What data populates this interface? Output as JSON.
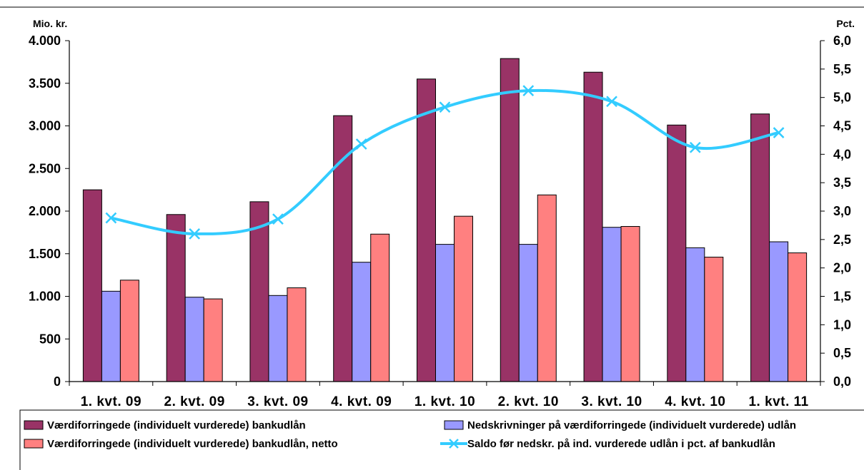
{
  "chart_data": {
    "type": "bar",
    "categories": [
      "1. kvt. 09",
      "2. kvt. 09",
      "3. kvt. 09",
      "4. kvt. 09",
      "1. kvt. 10",
      "2. kvt. 10",
      "3. kvt. 10",
      "4. kvt. 10",
      "1. kvt. 11"
    ],
    "left_axis": {
      "unit": "Mio. kr.",
      "ylim": [
        0,
        4000
      ],
      "ticks": [
        0,
        500,
        1000,
        1500,
        2000,
        2500,
        3000,
        3500,
        4000
      ],
      "tick_labels": [
        "0",
        "500",
        "1.000",
        "1.500",
        "2.000",
        "2.500",
        "3.000",
        "3.500",
        "4.000"
      ]
    },
    "right_axis": {
      "unit": "Pct.",
      "ylim": [
        0,
        6
      ],
      "ticks": [
        0,
        0.5,
        1,
        1.5,
        2,
        2.5,
        3,
        3.5,
        4,
        4.5,
        5,
        5.5,
        6
      ],
      "tick_labels": [
        "0,0",
        "0,5",
        "1,0",
        "1,5",
        "2,0",
        "2,5",
        "3,0",
        "3,5",
        "4,0",
        "4,5",
        "5,0",
        "5,5",
        "6,0"
      ]
    },
    "series": [
      {
        "name": "Værdiforringede (individuelt vurderede) bankudlån",
        "kind": "bar",
        "axis": "left",
        "color": "#993366",
        "values": [
          2250,
          1960,
          2110,
          3120,
          3550,
          3790,
          3630,
          3010,
          3140
        ]
      },
      {
        "name": "Nedskrivninger på værdiforringede (individuelt vurderede) udlån",
        "kind": "bar",
        "axis": "left",
        "color": "#9999ff",
        "values": [
          1060,
          990,
          1010,
          1400,
          1610,
          1610,
          1810,
          1570,
          1640
        ]
      },
      {
        "name": "Værdiforringede (individuelt vurderede) bankudlån, netto",
        "kind": "bar",
        "axis": "left",
        "color": "#ff8080",
        "values": [
          1190,
          970,
          1100,
          1730,
          1940,
          2190,
          1820,
          1460,
          1510
        ]
      },
      {
        "name": "Saldo før nedskr. på ind. vurderede udlån i pct. af bankudlån",
        "kind": "line",
        "axis": "right",
        "color": "#33ccff",
        "values": [
          2.88,
          2.6,
          2.86,
          4.18,
          4.83,
          5.12,
          4.93,
          4.12,
          4.38
        ]
      }
    ],
    "grid": false,
    "legend_position": "bottom"
  }
}
